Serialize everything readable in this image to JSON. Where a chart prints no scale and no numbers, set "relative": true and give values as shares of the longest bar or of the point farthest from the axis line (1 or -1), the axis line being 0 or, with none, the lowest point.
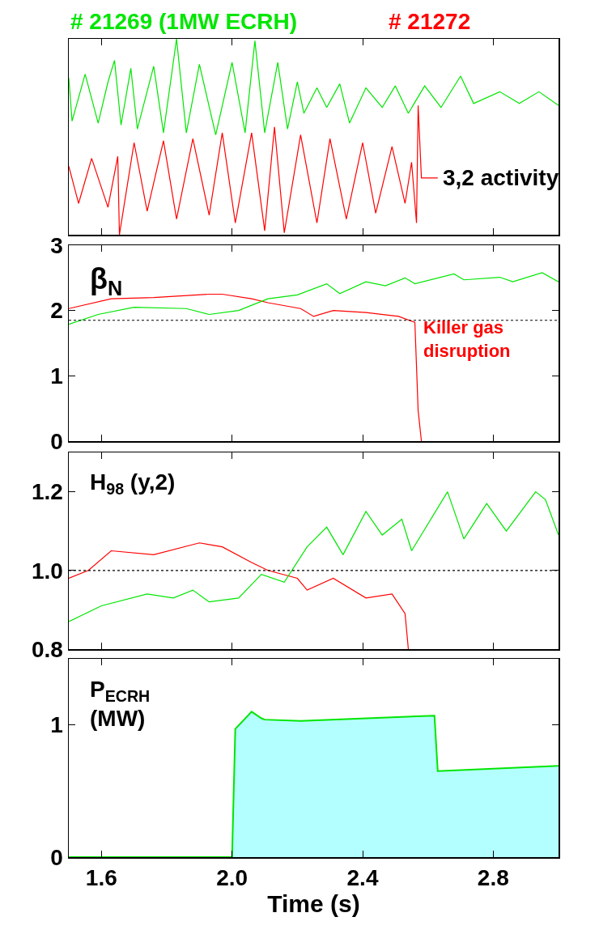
{
  "chart_data": [
    {
      "type": "line",
      "relative": true,
      "legend": "top",
      "tick_labels": false,
      "xlim": [
        1.5,
        3.0
      ],
      "xticks": [
        1.6,
        2.0,
        2.4,
        2.8
      ],
      "grid": false,
      "annotations": [
        {
          "text": "3,2 activity",
          "x": 2.64,
          "y": 0.29
        }
      ],
      "series": [
        {
          "name": "# 21269 (1MW ECRH)",
          "color": "#00e600",
          "x": [
            1.5,
            1.51,
            1.55,
            1.59,
            1.62,
            1.64,
            1.66,
            1.69,
            1.71,
            1.76,
            1.79,
            1.83,
            1.86,
            1.9,
            1.95,
            2.0,
            2.04,
            2.07,
            2.1,
            2.14,
            2.17,
            2.2,
            2.22,
            2.26,
            2.29,
            2.33,
            2.36,
            2.41,
            2.46,
            2.5,
            2.54,
            2.59,
            2.64,
            2.7,
            2.74,
            2.82,
            2.88,
            2.94,
            3.0
          ],
          "values": [
            0.8,
            0.58,
            0.82,
            0.57,
            0.78,
            0.89,
            0.56,
            0.85,
            0.54,
            0.86,
            0.52,
            1.0,
            0.52,
            0.87,
            0.51,
            0.88,
            0.52,
            0.99,
            0.52,
            0.88,
            0.54,
            0.78,
            0.62,
            0.75,
            0.65,
            0.77,
            0.57,
            0.75,
            0.65,
            0.76,
            0.62,
            0.76,
            0.65,
            0.81,
            0.67,
            0.73,
            0.67,
            0.73,
            0.66
          ]
        },
        {
          "name": "# 21272",
          "color": "#ff0000",
          "x": [
            1.5,
            1.53,
            1.57,
            1.62,
            1.65,
            1.655,
            1.7,
            1.74,
            1.79,
            1.83,
            1.88,
            1.93,
            1.97,
            2.01,
            2.06,
            2.1,
            2.13,
            2.16,
            2.21,
            2.26,
            2.3,
            2.35,
            2.4,
            2.44,
            2.49,
            2.53,
            2.55,
            2.565,
            2.57,
            2.58,
            2.63
          ],
          "values": [
            0.35,
            0.16,
            0.39,
            0.14,
            0.4,
            0.0,
            0.47,
            0.12,
            0.48,
            0.08,
            0.49,
            0.1,
            0.52,
            0.06,
            0.52,
            0.02,
            0.55,
            0.01,
            0.51,
            0.06,
            0.49,
            0.08,
            0.47,
            0.11,
            0.45,
            0.16,
            0.37,
            0.06,
            0.66,
            0.29,
            0.29
          ]
        }
      ]
    },
    {
      "type": "line",
      "ylabel": "β$_{N}$",
      "xlim": [
        1.5,
        3.0
      ],
      "xticks": [
        1.6,
        2.0,
        2.4,
        2.8
      ],
      "ylim": [
        0,
        3
      ],
      "yticks": [
        0,
        1,
        2,
        3
      ],
      "tick_labels": "y",
      "grid": false,
      "ref_lines": [
        {
          "axis": "y",
          "value": 1.85,
          "line_style": "dotted",
          "color": "#000000"
        }
      ],
      "annotations": [
        "Killer gas\ndisruption"
      ],
      "series": [
        {
          "color": "#ff0000",
          "x": [
            1.5,
            1.63,
            1.76,
            1.93,
            1.97,
            2.06,
            2.11,
            2.21,
            2.25,
            2.31,
            2.41,
            2.51,
            2.56,
            2.57,
            2.58
          ],
          "values": [
            2.03,
            2.18,
            2.2,
            2.25,
            2.25,
            2.18,
            2.12,
            2.03,
            1.91,
            2.0,
            1.97,
            1.91,
            1.82,
            0.47,
            0
          ]
        },
        {
          "color": "#00e600",
          "x": [
            1.5,
            1.59,
            1.7,
            1.86,
            1.93,
            2.02,
            2.11,
            2.2,
            2.29,
            2.33,
            2.41,
            2.47,
            2.53,
            2.56,
            2.68,
            2.71,
            2.82,
            2.86,
            2.95,
            3.0
          ],
          "values": [
            1.79,
            1.94,
            2.05,
            2.03,
            1.94,
            2.0,
            2.18,
            2.24,
            2.41,
            2.26,
            2.44,
            2.38,
            2.5,
            2.41,
            2.56,
            2.47,
            2.51,
            2.44,
            2.58,
            2.44
          ]
        }
      ]
    },
    {
      "type": "line",
      "ylabel": "H$_{98}$ (y,2)",
      "xlim": [
        1.5,
        3.0
      ],
      "xticks": [
        1.6,
        2.0,
        2.4,
        2.8
      ],
      "ylim": [
        0.8,
        1.3
      ],
      "yticks": [
        {
          "value": 0.8,
          "label": "0.8"
        },
        {
          "value": 1.0,
          "label": "1.0"
        },
        {
          "value": 1.2,
          "label": "1.2"
        }
      ],
      "tick_labels": "y",
      "grid": false,
      "ref_lines": [
        {
          "axis": "y",
          "value": 1.0,
          "line_style": "dotted",
          "color": "#000000"
        }
      ],
      "series": [
        {
          "color": "#ff0000",
          "x": [
            1.5,
            1.56,
            1.63,
            1.76,
            1.9,
            1.97,
            2.06,
            2.11,
            2.2,
            2.23,
            2.31,
            2.41,
            2.49,
            2.53,
            2.54
          ],
          "values": [
            0.98,
            1.0,
            1.05,
            1.04,
            1.07,
            1.06,
            1.02,
            1.0,
            0.98,
            0.95,
            0.98,
            0.93,
            0.94,
            0.89,
            0.8
          ]
        },
        {
          "color": "#00e600",
          "x": [
            1.5,
            1.6,
            1.74,
            1.82,
            1.88,
            1.93,
            2.02,
            2.09,
            2.16,
            2.23,
            2.29,
            2.34,
            2.41,
            2.46,
            2.52,
            2.55,
            2.66,
            2.71,
            2.78,
            2.84,
            2.93,
            2.96,
            3.0
          ],
          "values": [
            0.87,
            0.91,
            0.94,
            0.93,
            0.95,
            0.92,
            0.93,
            0.99,
            0.97,
            1.06,
            1.11,
            1.04,
            1.15,
            1.09,
            1.13,
            1.05,
            1.2,
            1.08,
            1.17,
            1.1,
            1.2,
            1.18,
            1.09
          ]
        }
      ]
    },
    {
      "type": "area",
      "ylabel": "P$_{ECRH}$\n(MW)",
      "xlabel": "Time (s)",
      "xlim": [
        1.5,
        3.0
      ],
      "xticks": [
        {
          "value": 1.6,
          "label": "1.6"
        },
        {
          "value": 2.0,
          "label": "2.0"
        },
        {
          "value": 2.4,
          "label": "2.4"
        },
        {
          "value": 2.8,
          "label": "2.8"
        }
      ],
      "ylim": [
        0,
        1.5
      ],
      "yticks": [
        0,
        1
      ],
      "grid": false,
      "series": [
        {
          "color": "#00e600",
          "x": [
            1.5,
            2.0,
            2.01,
            2.06,
            2.09,
            2.1,
            2.21,
            2.62,
            2.63,
            3.0
          ],
          "values": [
            0,
            0,
            0.97,
            1.1,
            1.05,
            1.04,
            1.03,
            1.07,
            0.65,
            0.69
          ]
        }
      ]
    }
  ]
}
